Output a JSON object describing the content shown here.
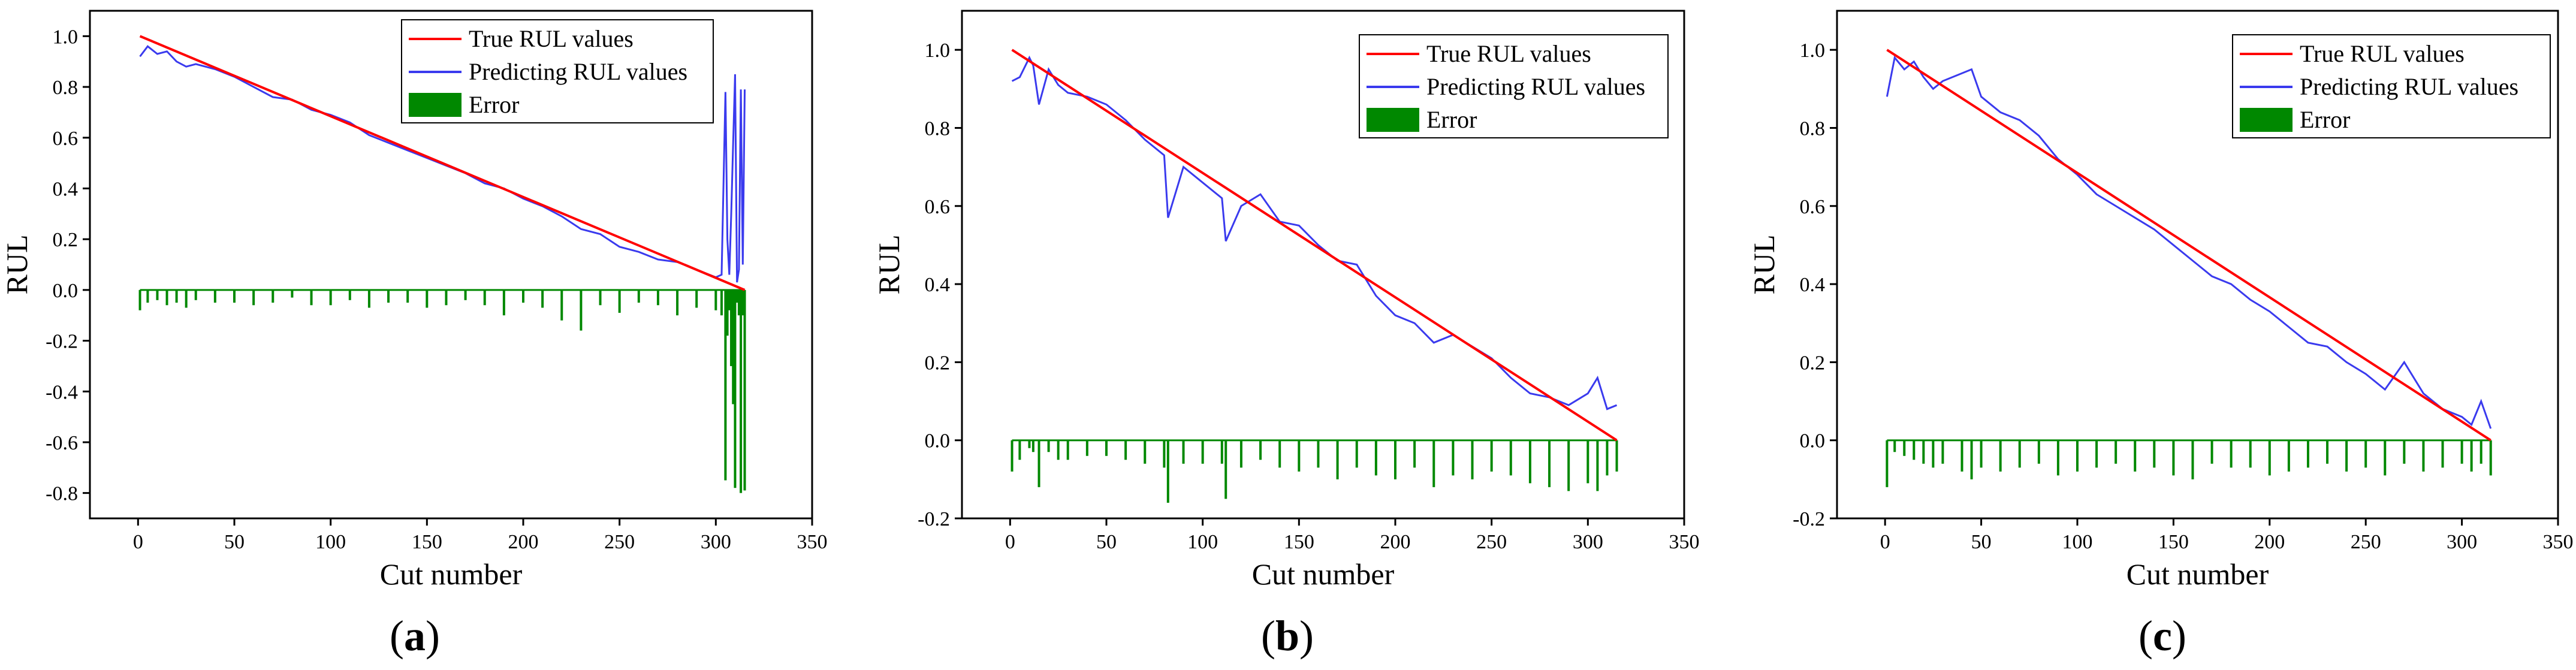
{
  "figure": {
    "captions": [
      "(a)",
      "(b)",
      "(c)"
    ],
    "caption_parts": [
      {
        "open": "(",
        "letter": "a",
        "close": ")"
      },
      {
        "open": "(",
        "letter": "b",
        "close": ")"
      },
      {
        "open": "(",
        "letter": "c",
        "close": ")"
      }
    ]
  },
  "colors": {
    "true": "#ff0000",
    "pred": "#3a3aee",
    "error": "#008800"
  },
  "chart_data": [
    {
      "type": "line",
      "panel": "a",
      "xlabel": "Cut number",
      "ylabel": "RUL",
      "xlim": [
        -25,
        350
      ],
      "ylim": [
        -0.9,
        1.1
      ],
      "xticks": [
        0,
        50,
        100,
        150,
        200,
        250,
        300,
        350
      ],
      "yticks": [
        -0.8,
        -0.6,
        -0.4,
        -0.2,
        0.0,
        0.2,
        0.4,
        0.6,
        0.8,
        1.0
      ],
      "ytick_labels": [
        "-0.8",
        "-0.6",
        "-0.4",
        "-0.2",
        "0.0",
        "0.2",
        "0.4",
        "0.6",
        "0.8",
        "1.0"
      ],
      "legend": [
        "True RUL values",
        "Predicting RUL values",
        "Error"
      ],
      "legend_position": "top-right",
      "series": [
        {
          "name": "True RUL values",
          "x": [
            1,
            315
          ],
          "values": [
            1.0,
            0.0
          ]
        },
        {
          "name": "Predicting RUL values",
          "x": [
            1,
            5,
            10,
            15,
            20,
            25,
            30,
            40,
            50,
            60,
            70,
            80,
            90,
            100,
            110,
            120,
            130,
            140,
            150,
            160,
            170,
            180,
            190,
            200,
            210,
            220,
            230,
            240,
            250,
            260,
            270,
            280,
            290,
            300,
            303,
            305,
            306,
            307,
            308,
            309,
            310,
            311,
            312,
            313,
            314,
            315
          ],
          "values": [
            0.92,
            0.96,
            0.93,
            0.94,
            0.9,
            0.88,
            0.89,
            0.87,
            0.84,
            0.8,
            0.76,
            0.75,
            0.71,
            0.69,
            0.66,
            0.61,
            0.58,
            0.55,
            0.52,
            0.49,
            0.46,
            0.42,
            0.4,
            0.36,
            0.33,
            0.29,
            0.24,
            0.22,
            0.17,
            0.15,
            0.12,
            0.11,
            0.08,
            0.05,
            0.06,
            0.78,
            0.2,
            0.06,
            0.3,
            0.58,
            0.85,
            0.03,
            0.08,
            0.79,
            0.1,
            0.79
          ]
        },
        {
          "name": "Error",
          "kind": "bars",
          "x": [
            1,
            5,
            10,
            15,
            20,
            25,
            30,
            40,
            50,
            60,
            70,
            80,
            90,
            100,
            110,
            120,
            130,
            140,
            150,
            160,
            170,
            180,
            190,
            200,
            210,
            220,
            230,
            240,
            250,
            260,
            270,
            280,
            290,
            300,
            303,
            305,
            306,
            307,
            308,
            309,
            310,
            311,
            312,
            313,
            314,
            315
          ],
          "values": [
            -0.08,
            -0.05,
            -0.04,
            -0.06,
            -0.05,
            -0.07,
            -0.04,
            -0.05,
            -0.05,
            -0.06,
            -0.05,
            -0.03,
            -0.06,
            -0.06,
            -0.04,
            -0.07,
            -0.05,
            -0.05,
            -0.07,
            -0.06,
            -0.04,
            -0.06,
            -0.1,
            -0.05,
            -0.07,
            -0.12,
            -0.16,
            -0.06,
            -0.09,
            -0.05,
            -0.06,
            -0.1,
            -0.07,
            -0.08,
            -0.1,
            -0.75,
            -0.18,
            -0.08,
            -0.3,
            -0.45,
            -0.78,
            -0.05,
            -0.1,
            -0.8,
            -0.1,
            -0.79
          ]
        }
      ]
    },
    {
      "type": "line",
      "panel": "b",
      "xlabel": "Cut number",
      "ylabel": "RUL",
      "xlim": [
        -25,
        350
      ],
      "ylim": [
        -0.2,
        1.1
      ],
      "xticks": [
        0,
        50,
        100,
        150,
        200,
        250,
        300,
        350
      ],
      "yticks": [
        -0.2,
        0.0,
        0.2,
        0.4,
        0.6,
        0.8,
        1.0
      ],
      "ytick_labels": [
        "-0.2",
        "0.0",
        "0.2",
        "0.4",
        "0.6",
        "0.8",
        "1.0"
      ],
      "legend": [
        "True RUL values",
        "Predicting RUL values",
        "Error"
      ],
      "legend_position": "top-right",
      "series": [
        {
          "name": "True RUL values",
          "x": [
            1,
            315
          ],
          "values": [
            1.0,
            0.0
          ]
        },
        {
          "name": "Predicting RUL values",
          "x": [
            1,
            5,
            10,
            12,
            15,
            20,
            25,
            30,
            40,
            50,
            60,
            70,
            80,
            82,
            90,
            100,
            110,
            112,
            120,
            130,
            140,
            150,
            160,
            170,
            180,
            190,
            200,
            210,
            220,
            230,
            240,
            250,
            260,
            270,
            280,
            290,
            300,
            305,
            310,
            315
          ],
          "values": [
            0.92,
            0.93,
            0.98,
            0.96,
            0.86,
            0.95,
            0.91,
            0.89,
            0.88,
            0.86,
            0.82,
            0.77,
            0.73,
            0.57,
            0.7,
            0.66,
            0.62,
            0.51,
            0.6,
            0.63,
            0.56,
            0.55,
            0.5,
            0.46,
            0.45,
            0.37,
            0.32,
            0.3,
            0.25,
            0.27,
            0.24,
            0.21,
            0.16,
            0.12,
            0.11,
            0.09,
            0.12,
            0.16,
            0.08,
            0.09
          ]
        },
        {
          "name": "Error",
          "kind": "bars",
          "x": [
            1,
            5,
            10,
            12,
            15,
            20,
            25,
            30,
            40,
            50,
            60,
            70,
            80,
            82,
            90,
            100,
            110,
            112,
            120,
            130,
            140,
            150,
            160,
            170,
            180,
            190,
            200,
            210,
            220,
            230,
            240,
            250,
            260,
            270,
            280,
            290,
            300,
            305,
            310,
            315
          ],
          "values": [
            -0.08,
            -0.05,
            -0.02,
            -0.03,
            -0.12,
            -0.03,
            -0.05,
            -0.05,
            -0.04,
            -0.04,
            -0.05,
            -0.06,
            -0.07,
            -0.16,
            -0.06,
            -0.06,
            -0.06,
            -0.15,
            -0.07,
            -0.05,
            -0.07,
            -0.08,
            -0.07,
            -0.1,
            -0.07,
            -0.09,
            -0.1,
            -0.07,
            -0.12,
            -0.09,
            -0.1,
            -0.08,
            -0.09,
            -0.11,
            -0.12,
            -0.13,
            -0.11,
            -0.13,
            -0.09,
            -0.08
          ]
        }
      ]
    },
    {
      "type": "line",
      "panel": "c",
      "xlabel": "Cut number",
      "ylabel": "RUL",
      "xlim": [
        -25,
        350
      ],
      "ylim": [
        -0.2,
        1.1
      ],
      "xticks": [
        0,
        50,
        100,
        150,
        200,
        250,
        300,
        350
      ],
      "yticks": [
        -0.2,
        0.0,
        0.2,
        0.4,
        0.6,
        0.8,
        1.0
      ],
      "ytick_labels": [
        "-0.2",
        "0.0",
        "0.2",
        "0.4",
        "0.6",
        "0.8",
        "1.0"
      ],
      "legend": [
        "True RUL values",
        "Predicting RUL values",
        "Error"
      ],
      "legend_position": "top-right",
      "series": [
        {
          "name": "True RUL values",
          "x": [
            1,
            315
          ],
          "values": [
            1.0,
            0.0
          ]
        },
        {
          "name": "Predicting RUL values",
          "x": [
            1,
            5,
            10,
            15,
            20,
            25,
            30,
            40,
            45,
            50,
            60,
            70,
            80,
            90,
            100,
            110,
            120,
            130,
            140,
            150,
            160,
            170,
            180,
            190,
            200,
            210,
            220,
            230,
            240,
            250,
            260,
            270,
            280,
            290,
            300,
            305,
            310,
            315
          ],
          "values": [
            0.88,
            0.98,
            0.95,
            0.97,
            0.93,
            0.9,
            0.92,
            0.94,
            0.95,
            0.88,
            0.84,
            0.82,
            0.78,
            0.72,
            0.68,
            0.63,
            0.6,
            0.57,
            0.54,
            0.5,
            0.46,
            0.42,
            0.4,
            0.36,
            0.33,
            0.29,
            0.25,
            0.24,
            0.2,
            0.17,
            0.13,
            0.2,
            0.12,
            0.08,
            0.06,
            0.04,
            0.1,
            0.03
          ]
        },
        {
          "name": "Error",
          "kind": "bars",
          "x": [
            1,
            5,
            10,
            15,
            20,
            25,
            30,
            40,
            45,
            50,
            60,
            70,
            80,
            90,
            100,
            110,
            120,
            130,
            140,
            150,
            160,
            170,
            180,
            190,
            200,
            210,
            220,
            230,
            240,
            250,
            260,
            270,
            280,
            290,
            300,
            305,
            310,
            315
          ],
          "values": [
            -0.12,
            -0.03,
            -0.04,
            -0.05,
            -0.06,
            -0.07,
            -0.06,
            -0.08,
            -0.1,
            -0.07,
            -0.08,
            -0.07,
            -0.06,
            -0.09,
            -0.08,
            -0.07,
            -0.06,
            -0.08,
            -0.07,
            -0.09,
            -0.1,
            -0.06,
            -0.07,
            -0.07,
            -0.09,
            -0.08,
            -0.07,
            -0.06,
            -0.08,
            -0.07,
            -0.09,
            -0.06,
            -0.08,
            -0.07,
            -0.06,
            -0.08,
            -0.06,
            -0.09
          ]
        }
      ]
    }
  ]
}
